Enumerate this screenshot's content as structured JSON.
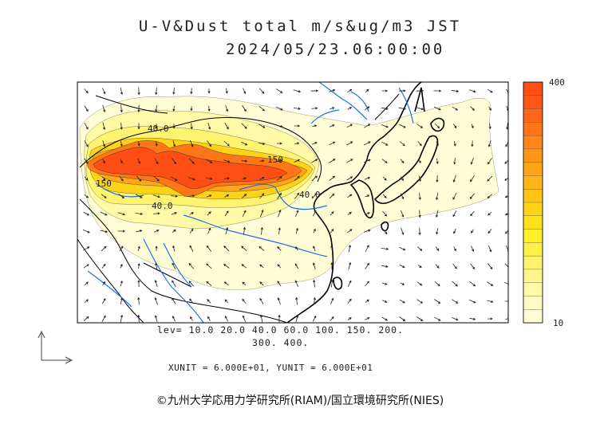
{
  "title": {
    "line1": "U-V&Dust total m/s&ug/m3 JST",
    "line2": "2024/05/23.06:00:00"
  },
  "colorbar": {
    "max_label": "400",
    "min_label": "10",
    "colors": [
      "#fffdd6",
      "#fffbc2",
      "#fff9a8",
      "#fff78e",
      "#fff370",
      "#ffef4a",
      "#fff02a",
      "#ffe21a",
      "#ffd21a",
      "#ffc31a",
      "#ffb41a",
      "#ffa51a",
      "#ff961a",
      "#ff861a",
      "#ff7619",
      "#ff6619",
      "#ff5618",
      "#ff4d16"
    ]
  },
  "legend": {
    "levels_line1": "lev= 10.0 20.0 40.0 60.0 100. 150. 200.",
    "levels_line2": "300. 400."
  },
  "units": "XUNIT = 6.000E+01, YUNIT = 6.000E+01",
  "credit": "©九州大学応用力学研究所(RIAM)/国立環境研究所(NIES)",
  "contour_labels": [
    "40.0",
    "150",
    "40.0",
    "150",
    "40.0"
  ],
  "palette": {
    "land_line": "#000000",
    "river": "#1a73e8",
    "arrow": "#222222"
  }
}
